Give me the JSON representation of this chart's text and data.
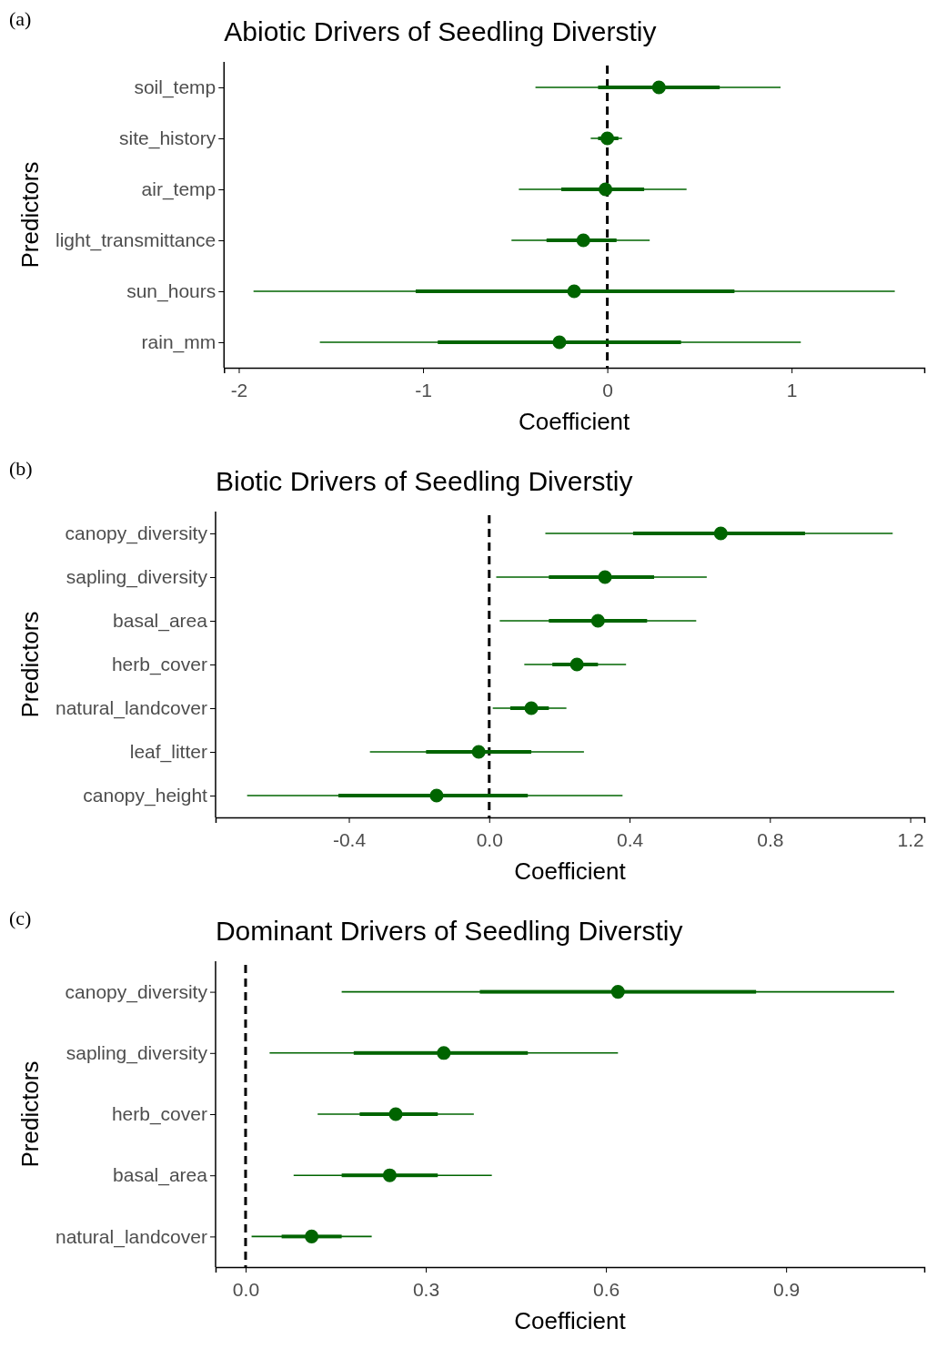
{
  "chart_data": [
    {
      "type": "scatter",
      "orientation": "horizontal",
      "title": "Abiotic Drivers of Seedling Diverstiy",
      "xlabel": "Coefficient",
      "ylabel": "Predictors",
      "annotations": [
        "(a)"
      ],
      "categories": [
        "soil_temp",
        "site_history",
        "air_temp",
        "light_transmittance",
        "sun_hours",
        "rain_mm"
      ],
      "xlim": [
        -2.08,
        1.72
      ],
      "xticks": [
        -2,
        -1,
        0,
        1
      ],
      "ref_lines": [
        {
          "axis": "x",
          "value": 0,
          "color": "#000000",
          "line_style": "dashed"
        }
      ],
      "series": [
        {
          "color": "#006400",
          "marker": "circle",
          "values": [
            0.28,
            0.0,
            -0.01,
            -0.13,
            -0.18,
            -0.26
          ],
          "errors": [
            [
              -0.39,
              0.94
            ],
            [
              -0.09,
              0.08
            ],
            [
              -0.48,
              0.43
            ],
            [
              -0.52,
              0.23
            ],
            [
              -1.92,
              1.56
            ],
            [
              -1.56,
              1.05
            ]
          ]
        },
        {
          "type": "bar",
          "color": "#006400",
          "base": [
            -0.05,
            -0.05,
            -0.25,
            -0.33,
            -1.04,
            -0.92
          ],
          "values": [
            0.66,
            0.11,
            0.45,
            0.38,
            1.73,
            1.32
          ]
        }
      ]
    },
    {
      "type": "scatter",
      "orientation": "horizontal",
      "title": "Biotic Drivers of Seedling Diverstiy",
      "xlabel": "Coefficient",
      "ylabel": "Predictors",
      "annotations": [
        "(b)"
      ],
      "categories": [
        "canopy_diversity",
        "sapling_diversity",
        "basal_area",
        "herb_cover",
        "natural_landcover",
        "leaf_litter",
        "canopy_height"
      ],
      "xlim": [
        -0.78,
        1.24
      ],
      "xticks": [
        {
          "value": -0.4,
          "label": "-0.4"
        },
        {
          "value": 0,
          "label": "0.0"
        },
        {
          "value": 0.4,
          "label": "0.4"
        },
        {
          "value": 0.8,
          "label": "0.8"
        },
        {
          "value": 1.2,
          "label": "1.2"
        }
      ],
      "ref_lines": [
        {
          "axis": "x",
          "value": 0,
          "color": "#000000",
          "line_style": "dashed"
        }
      ],
      "series": [
        {
          "color": "#006400",
          "marker": "circle",
          "values": [
            0.66,
            0.33,
            0.31,
            0.25,
            0.12,
            -0.03,
            -0.15
          ],
          "errors": [
            [
              0.16,
              1.15
            ],
            [
              0.02,
              0.62
            ],
            [
              0.03,
              0.59
            ],
            [
              0.1,
              0.39
            ],
            [
              0.01,
              0.22
            ],
            [
              -0.34,
              0.27
            ],
            [
              -0.69,
              0.38
            ]
          ]
        },
        {
          "type": "bar",
          "color": "#006400",
          "base": [
            0.41,
            0.17,
            0.17,
            0.18,
            0.06,
            -0.18,
            -0.43
          ],
          "values": [
            0.49,
            0.3,
            0.28,
            0.13,
            0.11,
            0.3,
            0.54
          ]
        }
      ]
    },
    {
      "type": "scatter",
      "orientation": "horizontal",
      "title": "Dominant Drivers of Seedling Diverstiy",
      "xlabel": "Coefficient",
      "ylabel": "Predictors",
      "annotations": [
        "(c)"
      ],
      "categories": [
        "canopy_diversity",
        "sapling_diversity",
        "herb_cover",
        "basal_area",
        "natural_landcover"
      ],
      "xlim": [
        -0.05,
        1.13
      ],
      "xticks": [
        {
          "value": 0,
          "label": "0.0"
        },
        {
          "value": 0.3,
          "label": "0.3"
        },
        {
          "value": 0.6,
          "label": "0.6"
        },
        {
          "value": 0.9,
          "label": "0.9"
        }
      ],
      "ref_lines": [
        {
          "axis": "x",
          "value": 0,
          "color": "#000000",
          "line_style": "dashed"
        }
      ],
      "series": [
        {
          "color": "#006400",
          "marker": "circle",
          "values": [
            0.62,
            0.33,
            0.25,
            0.24,
            0.11
          ],
          "errors": [
            [
              0.16,
              1.08
            ],
            [
              0.04,
              0.62
            ],
            [
              0.12,
              0.38
            ],
            [
              0.08,
              0.41
            ],
            [
              0.01,
              0.21
            ]
          ]
        },
        {
          "type": "bar",
          "color": "#006400",
          "base": [
            0.39,
            0.18,
            0.19,
            0.16,
            0.06
          ],
          "values": [
            0.46,
            0.29,
            0.13,
            0.16,
            0.1
          ]
        }
      ]
    }
  ]
}
